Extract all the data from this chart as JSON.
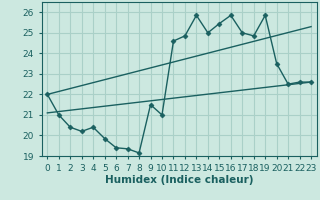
{
  "title": "",
  "xlabel": "Humidex (Indice chaleur)",
  "xlim": [
    -0.5,
    23.5
  ],
  "ylim": [
    19,
    26.5
  ],
  "yticks": [
    19,
    20,
    21,
    22,
    23,
    24,
    25,
    26
  ],
  "xticks": [
    0,
    1,
    2,
    3,
    4,
    5,
    6,
    7,
    8,
    9,
    10,
    11,
    12,
    13,
    14,
    15,
    16,
    17,
    18,
    19,
    20,
    21,
    22,
    23
  ],
  "bg_color": "#cce8e0",
  "grid_color": "#aad0c8",
  "line_color": "#1a6060",
  "line1_x": [
    0,
    1,
    2,
    3,
    4,
    5,
    6,
    7,
    8,
    9,
    10,
    11,
    12,
    13,
    14,
    15,
    16,
    17,
    18,
    19,
    20,
    21,
    22,
    23
  ],
  "line1_y": [
    22.0,
    21.0,
    20.4,
    20.2,
    20.4,
    19.85,
    19.4,
    19.35,
    19.15,
    21.5,
    21.0,
    24.6,
    24.85,
    25.85,
    25.0,
    25.45,
    25.85,
    25.0,
    24.85,
    25.85,
    23.5,
    22.5,
    22.6,
    22.6
  ],
  "line2_x": [
    0,
    23
  ],
  "line2_y": [
    21.1,
    22.6
  ],
  "line3_x": [
    0,
    23
  ],
  "line3_y": [
    22.0,
    25.3
  ],
  "tick_fontsize": 6.5,
  "label_fontsize": 7.5
}
